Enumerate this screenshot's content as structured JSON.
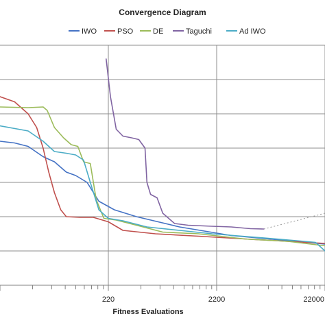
{
  "chart_data": {
    "type": "line",
    "title": "Convergence Diagram",
    "xlabel": "Fitness Evaluations",
    "ylabel": "",
    "x_scale": "log",
    "x_tick_labels": [
      "220",
      "2200",
      "22000"
    ],
    "x_tick_values": [
      220,
      2200,
      22000
    ],
    "xlim": [
      22,
      22000
    ],
    "ylim": [
      0,
      7
    ],
    "grid": true,
    "legend_position": "top",
    "series": [
      {
        "name": "IWO",
        "color": "#4472c4",
        "points": [
          [
            22,
            4.2
          ],
          [
            30,
            4.15
          ],
          [
            40,
            4.05
          ],
          [
            55,
            3.75
          ],
          [
            70,
            3.6
          ],
          [
            90,
            3.3
          ],
          [
            110,
            3.2
          ],
          [
            140,
            3.0
          ],
          [
            180,
            2.45
          ],
          [
            250,
            2.2
          ],
          [
            400,
            2.0
          ],
          [
            1000,
            1.7
          ],
          [
            3000,
            1.45
          ],
          [
            10000,
            1.3
          ],
          [
            22000,
            1.2
          ]
        ]
      },
      {
        "name": "PSO",
        "color": "#c0504d",
        "points": [
          [
            22,
            5.5
          ],
          [
            30,
            5.35
          ],
          [
            40,
            5.0
          ],
          [
            48,
            4.6
          ],
          [
            55,
            4.0
          ],
          [
            62,
            3.3
          ],
          [
            70,
            2.7
          ],
          [
            80,
            2.2
          ],
          [
            90,
            2.0
          ],
          [
            120,
            1.98
          ],
          [
            160,
            1.98
          ],
          [
            220,
            1.85
          ],
          [
            300,
            1.6
          ],
          [
            600,
            1.5
          ],
          [
            1500,
            1.43
          ],
          [
            4000,
            1.35
          ],
          [
            10000,
            1.28
          ],
          [
            22000,
            1.22
          ]
        ]
      },
      {
        "name": "DE",
        "color": "#9bbb59",
        "points": [
          [
            22,
            5.2
          ],
          [
            40,
            5.18
          ],
          [
            55,
            5.2
          ],
          [
            60,
            5.1
          ],
          [
            70,
            4.6
          ],
          [
            85,
            4.3
          ],
          [
            100,
            4.1
          ],
          [
            115,
            4.05
          ],
          [
            130,
            3.6
          ],
          [
            150,
            3.55
          ],
          [
            170,
            2.5
          ],
          [
            200,
            1.95
          ],
          [
            260,
            1.9
          ],
          [
            400,
            1.75
          ],
          [
            700,
            1.55
          ],
          [
            1500,
            1.5
          ],
          [
            4000,
            1.35
          ],
          [
            10000,
            1.28
          ],
          [
            22000,
            1.15
          ]
        ]
      },
      {
        "name": "Taguchi",
        "color": "#8064a2",
        "points": [
          [
            210,
            6.6
          ],
          [
            230,
            5.5
          ],
          [
            260,
            4.55
          ],
          [
            300,
            4.35
          ],
          [
            360,
            4.3
          ],
          [
            420,
            4.25
          ],
          [
            480,
            4.0
          ],
          [
            500,
            3.0
          ],
          [
            540,
            2.65
          ],
          [
            620,
            2.55
          ],
          [
            700,
            2.1
          ],
          [
            900,
            1.8
          ],
          [
            1200,
            1.75
          ],
          [
            2000,
            1.72
          ],
          [
            3000,
            1.7
          ],
          [
            4500,
            1.65
          ],
          [
            6000,
            1.64
          ]
        ]
      },
      {
        "name": "Ad IWO",
        "color": "#4bacc6",
        "points": [
          [
            22,
            4.65
          ],
          [
            40,
            4.5
          ],
          [
            55,
            4.2
          ],
          [
            70,
            3.9
          ],
          [
            90,
            3.85
          ],
          [
            110,
            3.8
          ],
          [
            130,
            3.65
          ],
          [
            150,
            3.0
          ],
          [
            180,
            2.2
          ],
          [
            220,
            1.95
          ],
          [
            300,
            1.88
          ],
          [
            500,
            1.7
          ],
          [
            1000,
            1.6
          ],
          [
            2000,
            1.5
          ],
          [
            5000,
            1.4
          ],
          [
            12000,
            1.3
          ],
          [
            18000,
            1.25
          ],
          [
            22000,
            1.0
          ]
        ]
      }
    ],
    "dotted_line": {
      "color": "#999999",
      "points": [
        [
          6000,
          1.64
        ],
        [
          22000,
          2.1
        ]
      ]
    }
  }
}
